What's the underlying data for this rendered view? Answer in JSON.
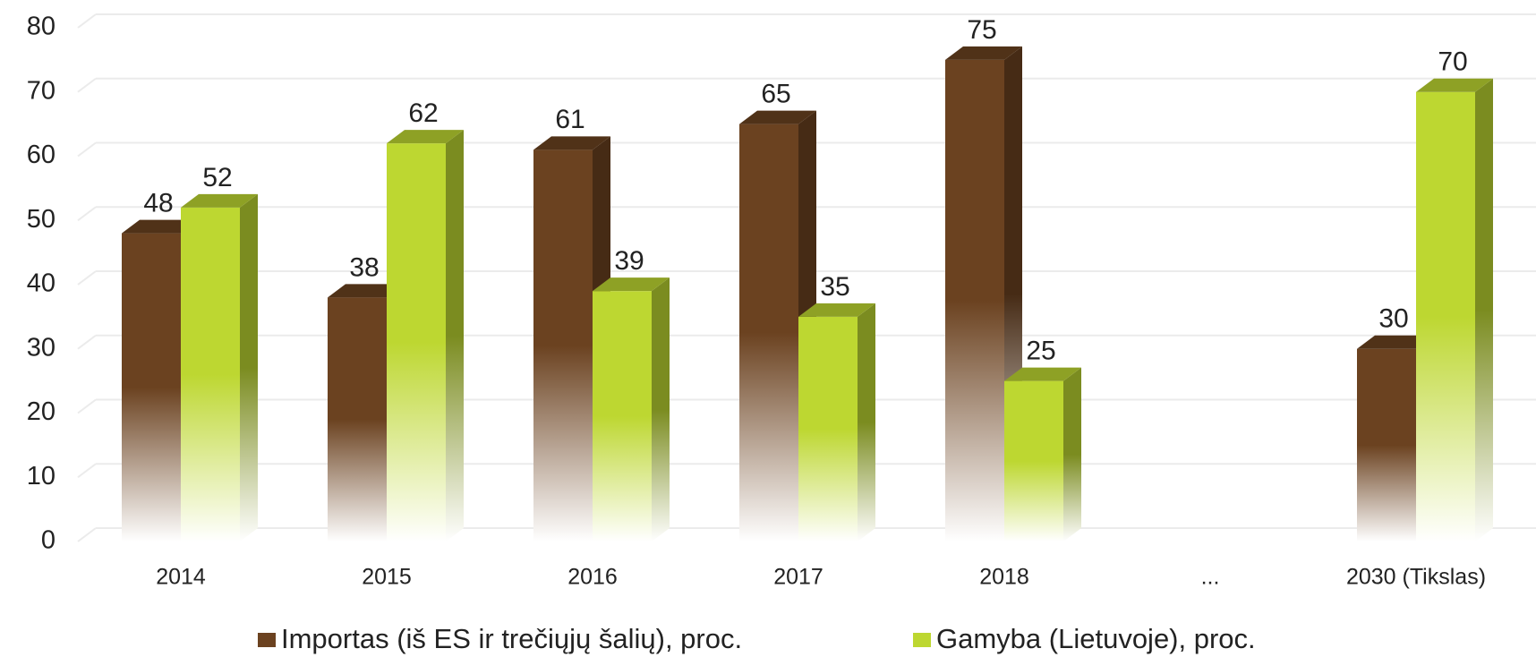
{
  "chart_data": {
    "type": "bar3d",
    "categories": [
      "2014",
      "2015",
      "2016",
      "2017",
      "2018",
      "...",
      "2030 (Tikslas)"
    ],
    "series": [
      {
        "name": "Importas (iš ES ir trečiųjų šalių), proc.",
        "color": "#6b4220",
        "values": [
          48,
          38,
          61,
          65,
          75,
          null,
          30
        ]
      },
      {
        "name": "Gamyba (Lietuvoje), proc.",
        "color": "#bdd731",
        "values": [
          52,
          62,
          39,
          35,
          25,
          null,
          70
        ]
      }
    ],
    "ylim": [
      0,
      80
    ],
    "yticks": [
      0,
      10,
      20,
      30,
      40,
      50,
      60,
      70,
      80
    ],
    "grid": true,
    "legend": "bottom"
  }
}
